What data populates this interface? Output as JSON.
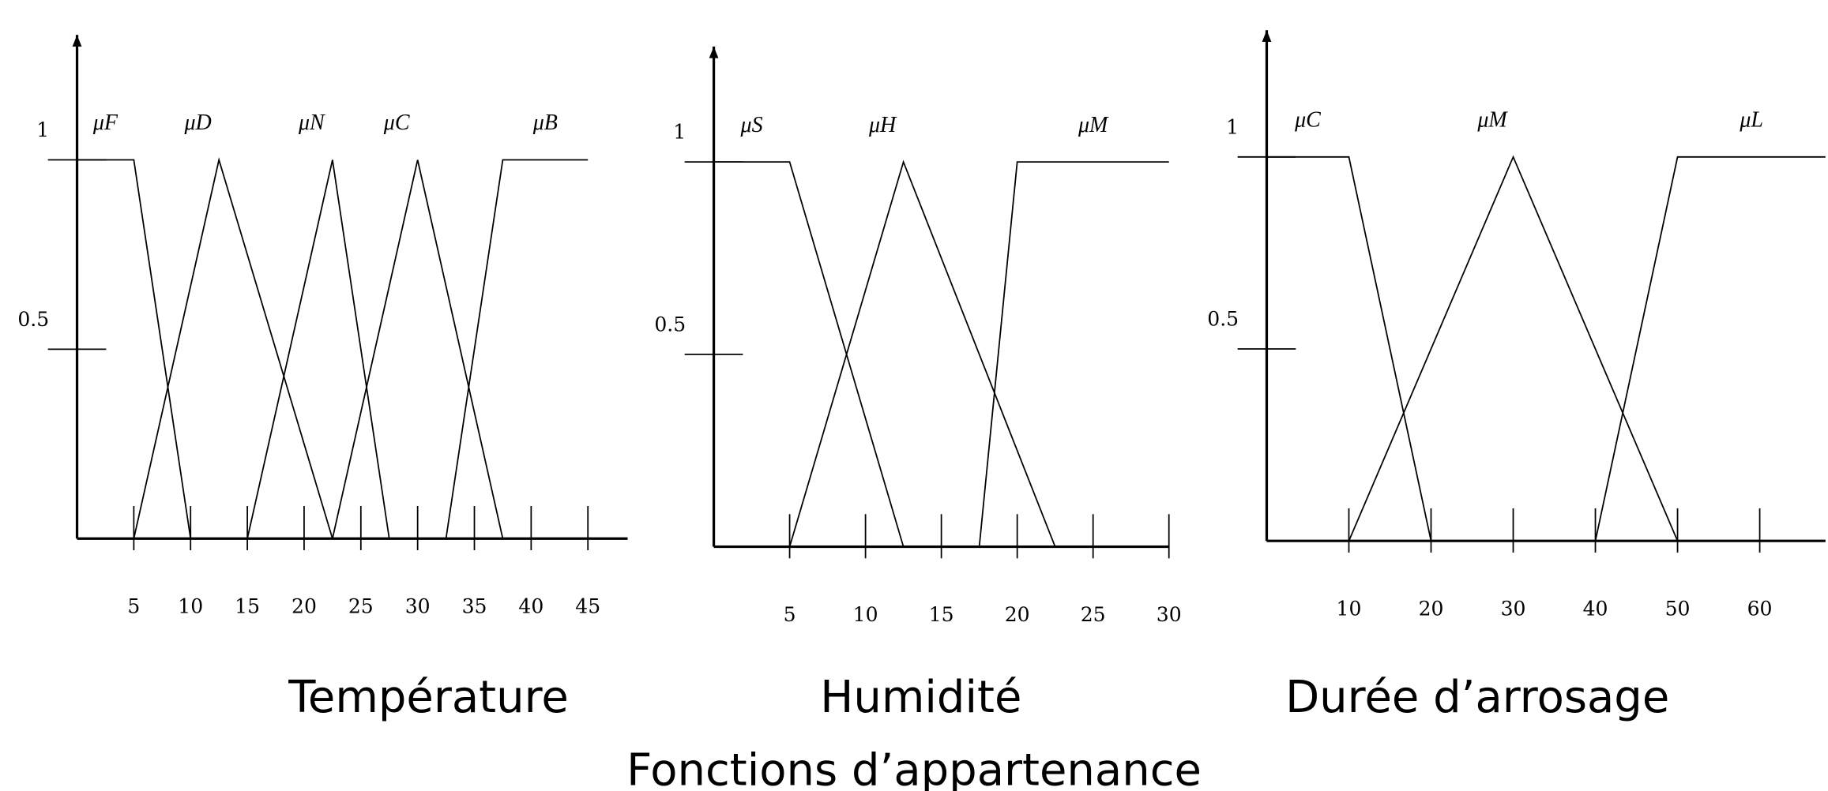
{
  "caption": "Fonctions d’appartenance",
  "chart_data": [
    {
      "type": "line",
      "title": "Température",
      "color": "#000000",
      "xlim": [
        0,
        48.5
      ],
      "ylim": [
        0,
        1.33
      ],
      "xticks": [
        5,
        10,
        15,
        20,
        25,
        30,
        35,
        40,
        45
      ],
      "yticks": [
        0.5,
        1
      ],
      "series": [
        {
          "name": "μF",
          "x": [
            0,
            5,
            10
          ],
          "values": [
            1,
            1,
            0
          ]
        },
        {
          "name": "μD",
          "x": [
            5,
            12.5,
            22.5
          ],
          "values": [
            0,
            1,
            0
          ]
        },
        {
          "name": "μN",
          "x": [
            15,
            22.5,
            27.5
          ],
          "values": [
            0,
            1,
            0
          ]
        },
        {
          "name": "μC",
          "x": [
            22.5,
            30,
            37.5
          ],
          "values": [
            0,
            1,
            0
          ]
        },
        {
          "name": "μB",
          "x": [
            32.5,
            37.5,
            45
          ],
          "values": [
            0,
            1,
            1
          ]
        }
      ]
    },
    {
      "type": "line",
      "title": "Humidité",
      "color": "#000000",
      "xlim": [
        0,
        30
      ],
      "ylim": [
        0,
        1.3
      ],
      "xticks": [
        5,
        10,
        15,
        20,
        25,
        30
      ],
      "yticks": [
        0.5,
        1
      ],
      "series": [
        {
          "name": "μS",
          "x": [
            0,
            5,
            12.5
          ],
          "values": [
            1,
            1,
            0
          ]
        },
        {
          "name": "μH",
          "x": [
            5,
            12.5,
            22.5
          ],
          "values": [
            0,
            1,
            0
          ]
        },
        {
          "name": "μM",
          "x": [
            17.5,
            20,
            30
          ],
          "values": [
            0,
            1,
            1
          ]
        }
      ]
    },
    {
      "type": "line",
      "title": "Durée d’arrosage",
      "color": "#000000",
      "xlim": [
        0,
        68
      ],
      "ylim": [
        0,
        1.33
      ],
      "xticks": [
        10,
        20,
        30,
        40,
        50,
        60
      ],
      "yticks": [
        0.5,
        1
      ],
      "series": [
        {
          "name": "μC",
          "x": [
            0,
            10,
            20
          ],
          "values": [
            1,
            1,
            0
          ]
        },
        {
          "name": "μM",
          "x": [
            10,
            30,
            50
          ],
          "values": [
            0,
            1,
            0
          ]
        },
        {
          "name": "μL",
          "x": [
            40,
            50,
            68
          ],
          "values": [
            0,
            1,
            1
          ]
        }
      ]
    }
  ]
}
